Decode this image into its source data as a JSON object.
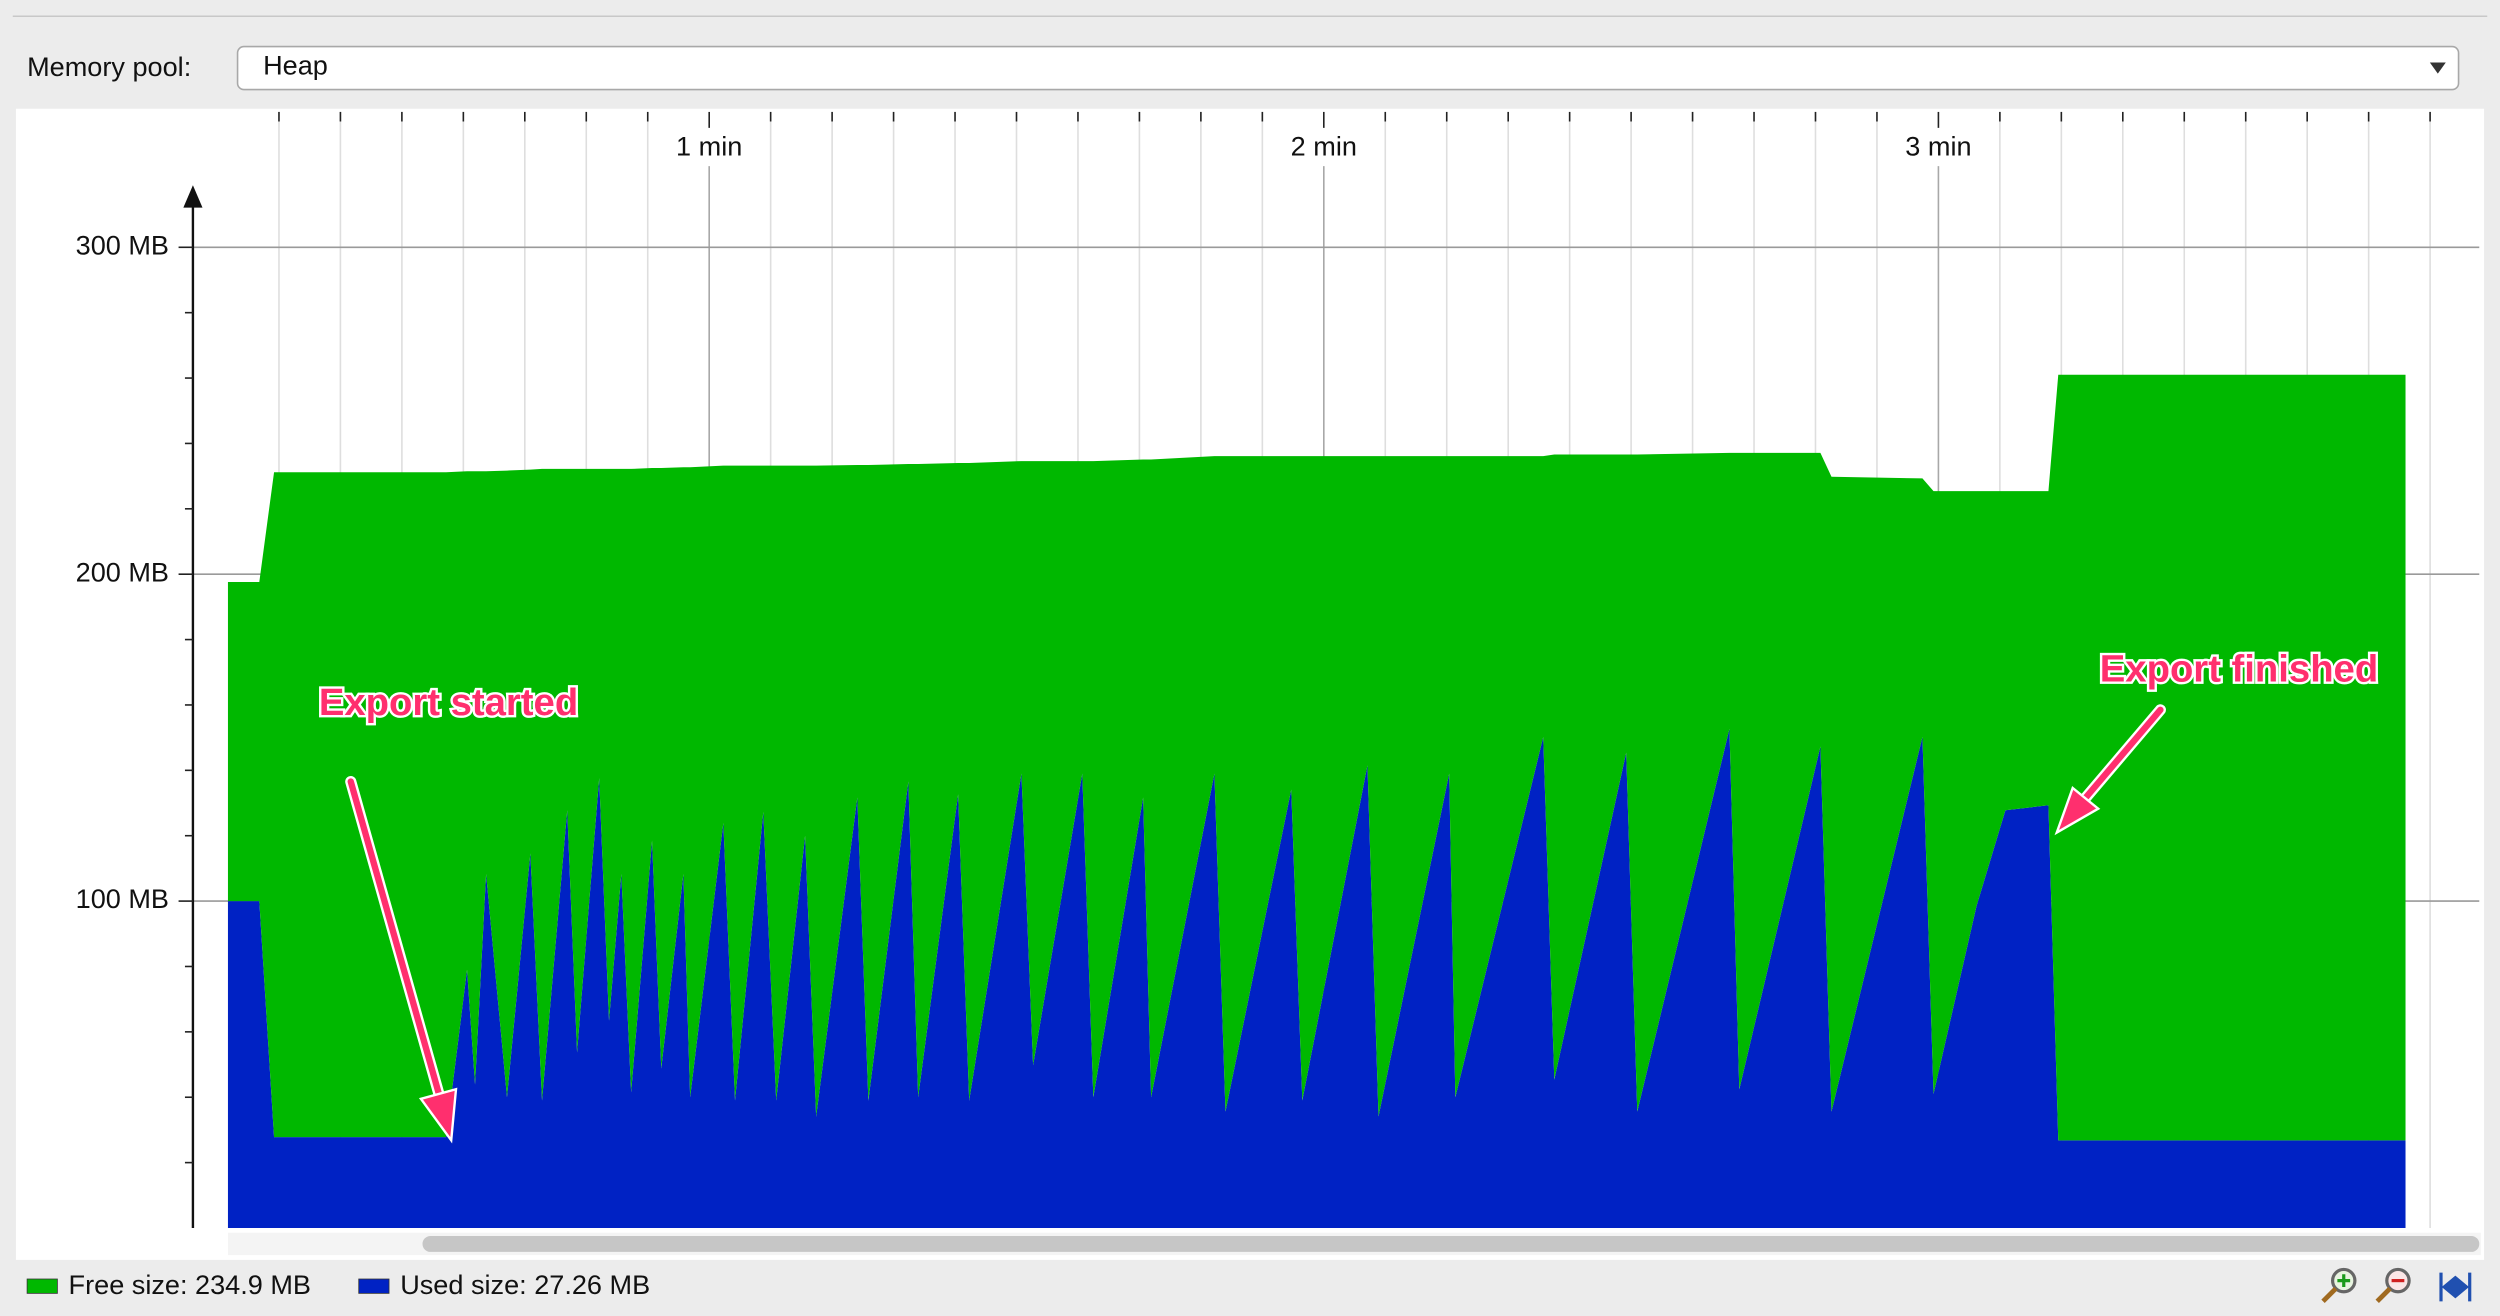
{
  "ui": {
    "pool_label": "Memory pool:",
    "pool_value": "Heap"
  },
  "chart_data": {
    "type": "area",
    "stacked": true,
    "xlim": [
      0.16,
      3.88
    ],
    "ylim": [
      0,
      318
    ],
    "xticks": [
      {
        "value": 1,
        "label": "1 min"
      },
      {
        "value": 2,
        "label": "2 min"
      },
      {
        "value": 3,
        "label": "3 min"
      }
    ],
    "xminorticks": [
      0.3,
      0.4,
      0.5,
      0.6,
      0.7,
      0.8,
      0.9,
      1.1,
      1.2,
      1.3,
      1.4,
      1.5,
      1.6,
      1.7,
      1.8,
      1.9,
      2.1,
      2.2,
      2.3,
      2.4,
      2.5,
      2.6,
      2.7,
      2.8,
      2.9,
      3.1,
      3.2,
      3.3,
      3.4,
      3.5,
      3.6,
      3.7,
      3.8
    ],
    "yticks": [
      {
        "value": 100,
        "label": "100 MB"
      },
      {
        "value": 200,
        "label": "200 MB"
      },
      {
        "value": 300,
        "label": "300 MB"
      }
    ],
    "yminorticks": [
      20,
      40,
      60,
      80,
      120,
      140,
      160,
      180,
      220,
      240,
      260,
      280
    ],
    "grid": true,
    "x": [
      0.217,
      0.268,
      0.292,
      0.572,
      0.606,
      0.619,
      0.637,
      0.671,
      0.709,
      0.728,
      0.769,
      0.785,
      0.821,
      0.837,
      0.857,
      0.873,
      0.907,
      0.922,
      0.958,
      0.969,
      1.023,
      1.042,
      1.088,
      1.109,
      1.156,
      1.174,
      1.241,
      1.259,
      1.324,
      1.34,
      1.405,
      1.423,
      1.508,
      1.527,
      1.607,
      1.625,
      1.706,
      1.719,
      1.822,
      1.84,
      1.947,
      1.965,
      2.071,
      2.089,
      2.204,
      2.214,
      2.357,
      2.375,
      2.492,
      2.51,
      2.66,
      2.676,
      2.808,
      2.826,
      2.974,
      2.992,
      3.062,
      3.109,
      3.179,
      3.195,
      3.76
    ],
    "series": [
      {
        "name": "Free size: 234.9 MB",
        "color": "#00b800",
        "values": [
          97.6,
          97.6,
          203.4,
          203.4,
          152.5,
          187.6,
          123.2,
          191.7,
          117.4,
          193.2,
          104.4,
          178.5,
          94.6,
          168.8,
          123.9,
          190.7,
          114,
          183.7,
          124.4,
          192.7,
          109.3,
          194.2,
          105.9,
          194.2,
          113.2,
          199.1,
          101.7,
          194.4,
          97.1,
          193.7,
          101.3,
          195,
          95.6,
          184.8,
          95.6,
          194.6,
          103.4,
          195.1,
          97.1,
          200.5,
          102,
          197.1,
          94.6,
          202,
          97.1,
          196.1,
          85.9,
          191.2,
          91.2,
          201,
          84.4,
          194.7,
          89.8,
          194.2,
          79.1,
          184.4,
          126.9,
          97.6,
          96.1,
          234.2,
          234.2
        ]
      },
      {
        "name": "Used size: 27.26 MB",
        "color": "#0022c4",
        "values": [
          100,
          100,
          27.8,
          27.8,
          79,
          43.9,
          108.3,
          40,
          114.6,
          39,
          127.8,
          53.7,
          137.6,
          63.4,
          108.3,
          41.5,
          118.5,
          48.8,
          108.3,
          40,
          123.9,
          39,
          127.3,
          39,
          120,
          34.1,
          131.7,
          39,
          136.6,
          40,
          132.7,
          39,
          139,
          49.8,
          139,
          40,
          131.7,
          40,
          139,
          35.6,
          134.1,
          39,
          141.5,
          34.1,
          139,
          40,
          150.2,
          45.4,
          145.4,
          35.6,
          152.7,
          42.4,
          147.3,
          35.6,
          150.2,
          41,
          98.5,
          127.8,
          129.3,
          26.8,
          26.8
        ]
      }
    ],
    "annotations": [
      {
        "text": "Export started"
      },
      {
        "text": "Export finished"
      }
    ]
  }
}
